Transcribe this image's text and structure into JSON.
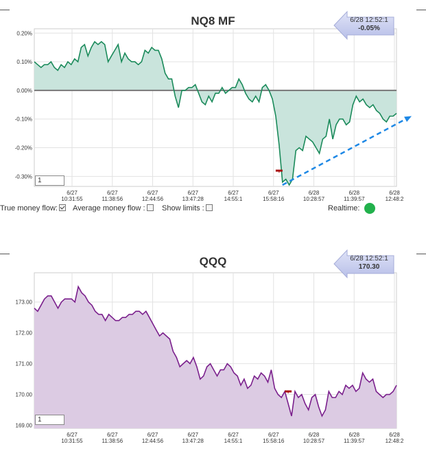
{
  "colors": {
    "mf_line": "#1a8a5a",
    "mf_fill": "#c9e4dc",
    "zero_line": "#777777",
    "trend_arrow": "#1e88e5",
    "qqq_line": "#7a1f8c",
    "qqq_fill": "#dccbe3",
    "marker": "#aa1111",
    "callout_fill": "#c9cfee",
    "realtime": "#22b14c"
  },
  "icons": [
    "left-arrow-callout-icon",
    "status-dot-icon",
    "checkbox-icon"
  ],
  "controls": {
    "true_mf_label": "True money flow:",
    "true_mf_checked": true,
    "avg_mf_label": "Average money flow :",
    "avg_mf_checked": false,
    "show_limits_label": "Show limits :",
    "show_limits_checked": false,
    "realtime_label": "Realtime:"
  },
  "chart_data": [
    {
      "type": "area",
      "title": "NQ8 MF",
      "callout": {
        "date": "6/28 12:52:1",
        "value": "-0.05%"
      },
      "zoom_value": "1",
      "y_ticks": [
        "0.20%",
        "0.10%",
        "0.00%",
        "-0.10%",
        "-0.20%",
        "-0.30%"
      ],
      "y_tick_values": [
        0.2,
        0.1,
        0.0,
        -0.1,
        -0.2,
        -0.3
      ],
      "ylim": [
        -0.335,
        0.215
      ],
      "x_ticks": [
        {
          "date": "6/27",
          "time": "10:31:55"
        },
        {
          "date": "6/27",
          "time": "11:38:56"
        },
        {
          "date": "6/27",
          "time": "12:44:56"
        },
        {
          "date": "6/27",
          "time": "13:47:28"
        },
        {
          "date": "6/27",
          "time": "14:55:1"
        },
        {
          "date": "6/27",
          "time": "15:58:16"
        },
        {
          "date": "6/28",
          "time": "10:28:57"
        },
        {
          "date": "6/28",
          "time": "11:39:57"
        },
        {
          "date": "6/28",
          "time": "12:48:2"
        }
      ],
      "grid": true,
      "series": [
        {
          "values": [
            0.1,
            0.09,
            0.08,
            0.09,
            0.09,
            0.1,
            0.08,
            0.07,
            0.09,
            0.08,
            0.1,
            0.09,
            0.11,
            0.1,
            0.15,
            0.16,
            0.12,
            0.15,
            0.17,
            0.16,
            0.17,
            0.16,
            0.1,
            0.12,
            0.14,
            0.16,
            0.1,
            0.13,
            0.11,
            0.1,
            0.1,
            0.09,
            0.1,
            0.14,
            0.13,
            0.15,
            0.14,
            0.14,
            0.11,
            0.06,
            0.04,
            0.04,
            -0.02,
            -0.06,
            0.0,
            0.0,
            0.01,
            0.01,
            0.02,
            -0.01,
            -0.04,
            -0.05,
            -0.02,
            -0.04,
            -0.01,
            -0.01,
            0.01,
            -0.01,
            0.0,
            0.01,
            0.01,
            0.04,
            0.02,
            -0.01,
            -0.03,
            -0.04,
            -0.02,
            -0.04,
            0.01,
            0.02,
            0.0,
            -0.03,
            -0.09,
            -0.19,
            -0.32,
            -0.31,
            -0.33,
            -0.31,
            -0.21,
            -0.2,
            -0.21,
            -0.16,
            -0.17,
            -0.18,
            -0.2,
            -0.22,
            -0.17,
            -0.16,
            -0.1,
            -0.17,
            -0.12,
            -0.1,
            -0.1,
            -0.12,
            -0.11,
            -0.05,
            -0.02,
            -0.04,
            -0.03,
            -0.05,
            -0.06,
            -0.05,
            -0.07,
            -0.08,
            -0.1,
            -0.11,
            -0.09,
            -0.09,
            -0.08
          ]
        }
      ],
      "annotations": [
        {
          "type": "marker",
          "x_index": 73,
          "y": -0.28
        },
        {
          "type": "trend-arrow",
          "from_index": 74,
          "from_y": -0.33,
          "to_index": 108,
          "to_y": -0.08
        }
      ]
    },
    {
      "type": "area",
      "title": "QQQ",
      "callout": {
        "date": "6/28 12:52:1",
        "value": "170.30"
      },
      "zoom_value": "1",
      "y_ticks": [
        "173.00",
        "172.00",
        "171.00",
        "170.00",
        "169.00"
      ],
      "y_tick_values": [
        173,
        172,
        171,
        170,
        169
      ],
      "ylim": [
        168.9,
        173.95
      ],
      "x_ticks": [
        {
          "date": "6/27",
          "time": "10:31:55"
        },
        {
          "date": "6/27",
          "time": "11:38:56"
        },
        {
          "date": "6/27",
          "time": "12:44:56"
        },
        {
          "date": "6/27",
          "time": "13:47:28"
        },
        {
          "date": "6/27",
          "time": "14:55:1"
        },
        {
          "date": "6/27",
          "time": "15:58:16"
        },
        {
          "date": "6/28",
          "time": "10:28:57"
        },
        {
          "date": "6/28",
          "time": "11:39:57"
        },
        {
          "date": "6/28",
          "time": "12:48:2"
        }
      ],
      "grid": true,
      "series": [
        {
          "values": [
            172.8,
            172.7,
            172.9,
            173.1,
            173.2,
            173.2,
            173.0,
            172.8,
            173.0,
            173.1,
            173.1,
            173.1,
            173.0,
            173.5,
            173.3,
            173.2,
            173.0,
            172.9,
            172.7,
            172.6,
            172.6,
            172.4,
            172.6,
            172.5,
            172.4,
            172.4,
            172.5,
            172.5,
            172.6,
            172.6,
            172.7,
            172.7,
            172.6,
            172.7,
            172.5,
            172.3,
            172.1,
            171.9,
            172.0,
            171.9,
            171.8,
            171.4,
            171.2,
            170.9,
            171.0,
            171.1,
            171.0,
            171.2,
            170.9,
            170.5,
            170.6,
            170.9,
            171.0,
            170.8,
            170.6,
            170.8,
            170.8,
            171.0,
            170.9,
            170.7,
            170.6,
            170.3,
            170.5,
            170.2,
            170.3,
            170.6,
            170.5,
            170.7,
            170.6,
            170.4,
            170.8,
            170.2,
            170.0,
            169.9,
            170.1,
            169.7,
            169.3,
            170.1,
            169.9,
            170.0,
            169.7,
            169.5,
            169.9,
            170.0,
            169.6,
            169.3,
            169.5,
            170.1,
            169.9,
            169.9,
            170.1,
            170.0,
            170.3,
            170.2,
            170.3,
            170.1,
            170.2,
            170.7,
            170.5,
            170.4,
            170.5,
            170.1,
            170.0,
            169.9,
            170.0,
            170.0,
            170.1,
            170.3
          ]
        }
      ],
      "annotations": [
        {
          "type": "marker",
          "x_index": 75,
          "y": 170.1
        }
      ]
    }
  ]
}
